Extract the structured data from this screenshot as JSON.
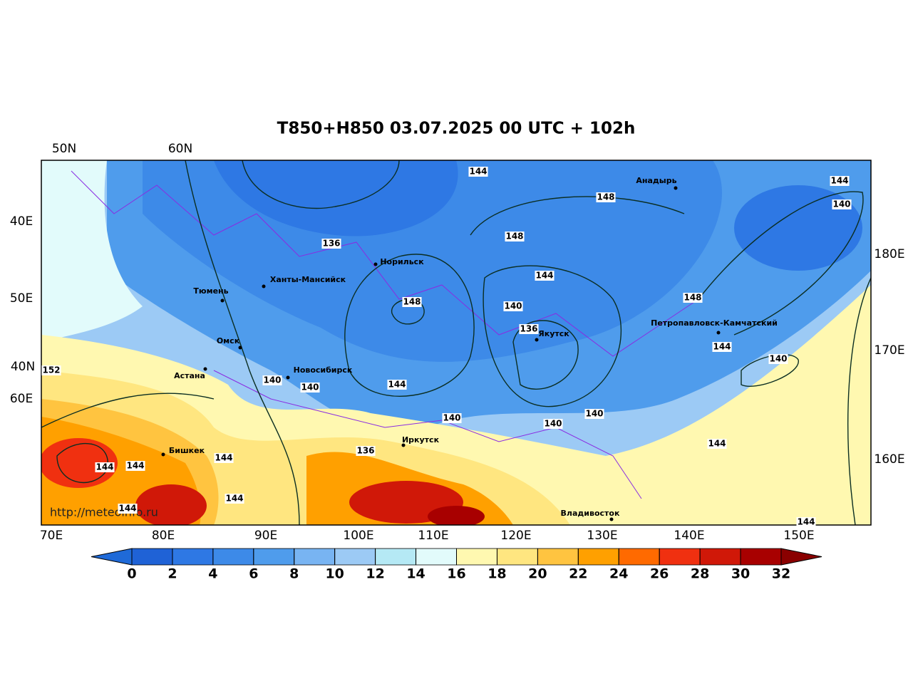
{
  "title": "T850+H850 03.07.2025 00 UTC + 102h",
  "watermark": "http://meteoinfo.ru",
  "axis_labels": {
    "top": [
      "50N",
      "60N"
    ],
    "left": [
      "40E",
      "50E",
      "40N",
      "60E"
    ],
    "right": [
      "180E",
      "170E",
      "160E"
    ],
    "bottom": [
      "70E",
      "80E",
      "90E",
      "100E",
      "110E",
      "120E",
      "130E",
      "140E",
      "150E"
    ]
  },
  "cities": [
    "Анадырь",
    "Норильск",
    "Ханты-Мансийск",
    "Тюмень",
    "Омск",
    "Астана",
    "Новосибирск",
    "Якутск",
    "Петропавловск-Камчатский",
    "Бишкек",
    "Иркутск",
    "Владивосток"
  ],
  "contour_labels": [
    144,
    148,
    144,
    140,
    136,
    148,
    144,
    148,
    140,
    136,
    148,
    144,
    140,
    152,
    140,
    140,
    144,
    140,
    140,
    140,
    144,
    136,
    144,
    144,
    144,
    144,
    144,
    144
  ],
  "colorbar": {
    "ticks": [
      0,
      2,
      4,
      6,
      8,
      10,
      12,
      14,
      16,
      18,
      20,
      22,
      24,
      26,
      28,
      30,
      32
    ],
    "under_color": "#1f6ad8",
    "over_color": "#8a0000",
    "colors": [
      "#1f62d6",
      "#2e78e4",
      "#3d8ae8",
      "#4f9cec",
      "#78b4f2",
      "#9ccaf5",
      "#b5e9f5",
      "#e2fbfb",
      "#fff8b0",
      "#ffe680",
      "#ffc440",
      "#ffa000",
      "#ff6a00",
      "#f03010",
      "#d01808",
      "#a80000"
    ]
  }
}
